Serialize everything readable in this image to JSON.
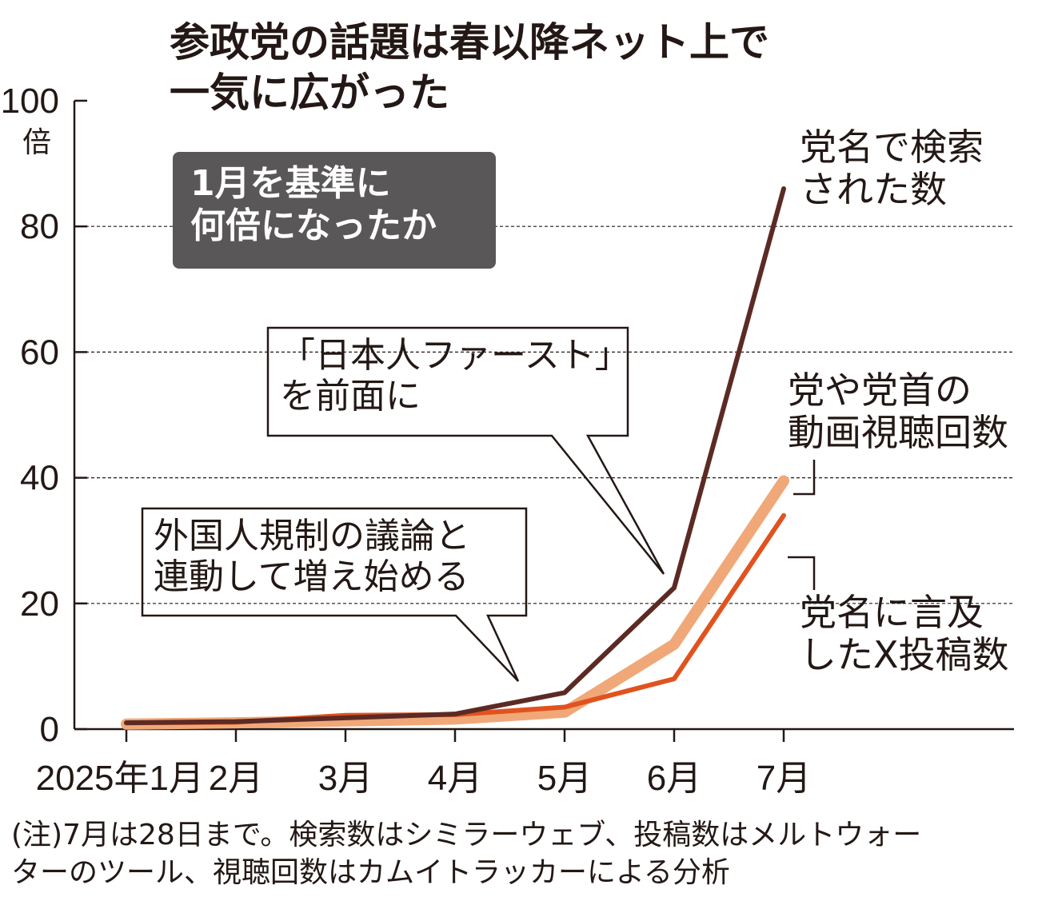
{
  "chart_data": {
    "type": "line",
    "title": "参政党の話題は春以降ネット上で\n一気に広がった",
    "y_unit": "倍",
    "subtitle": "1月を基準に\n何倍になったか",
    "annotations": [
      "「日本人ファースト」\nを前面に",
      "外国人規制の議論と\n連動して増え始める"
    ],
    "note": "(注)7月は28日まで。検索数はシミラーウェブ、投稿数はメルトウォー\nターのツール、視聴回数はカムイトラッカーによる分析",
    "categories": [
      "2025年1月",
      "2月",
      "3月",
      "4月",
      "5月",
      "6月",
      "7月"
    ],
    "series": [
      {
        "name": "党や党首の\n動画視聴回数",
        "color": "#f0a878",
        "line_width": 14,
        "values": [
          0.8,
          1,
          1.3,
          1.6,
          2.7,
          13.5,
          39.5
        ]
      },
      {
        "name": "党名に言及\nしたX投稿数",
        "color": "#e0531f",
        "line_width": 6,
        "values": [
          1,
          1.1,
          2.2,
          2.3,
          3.5,
          8,
          34
        ]
      },
      {
        "name": "党名で検索\nされた数",
        "color": "#5c2a24",
        "line_width": 6,
        "values": [
          1,
          1.2,
          1.8,
          2.4,
          5.8,
          22.5,
          86
        ]
      }
    ],
    "ylim": [
      0,
      100
    ],
    "yticks": [
      0,
      20,
      40,
      60,
      80,
      100
    ],
    "grid": true
  }
}
